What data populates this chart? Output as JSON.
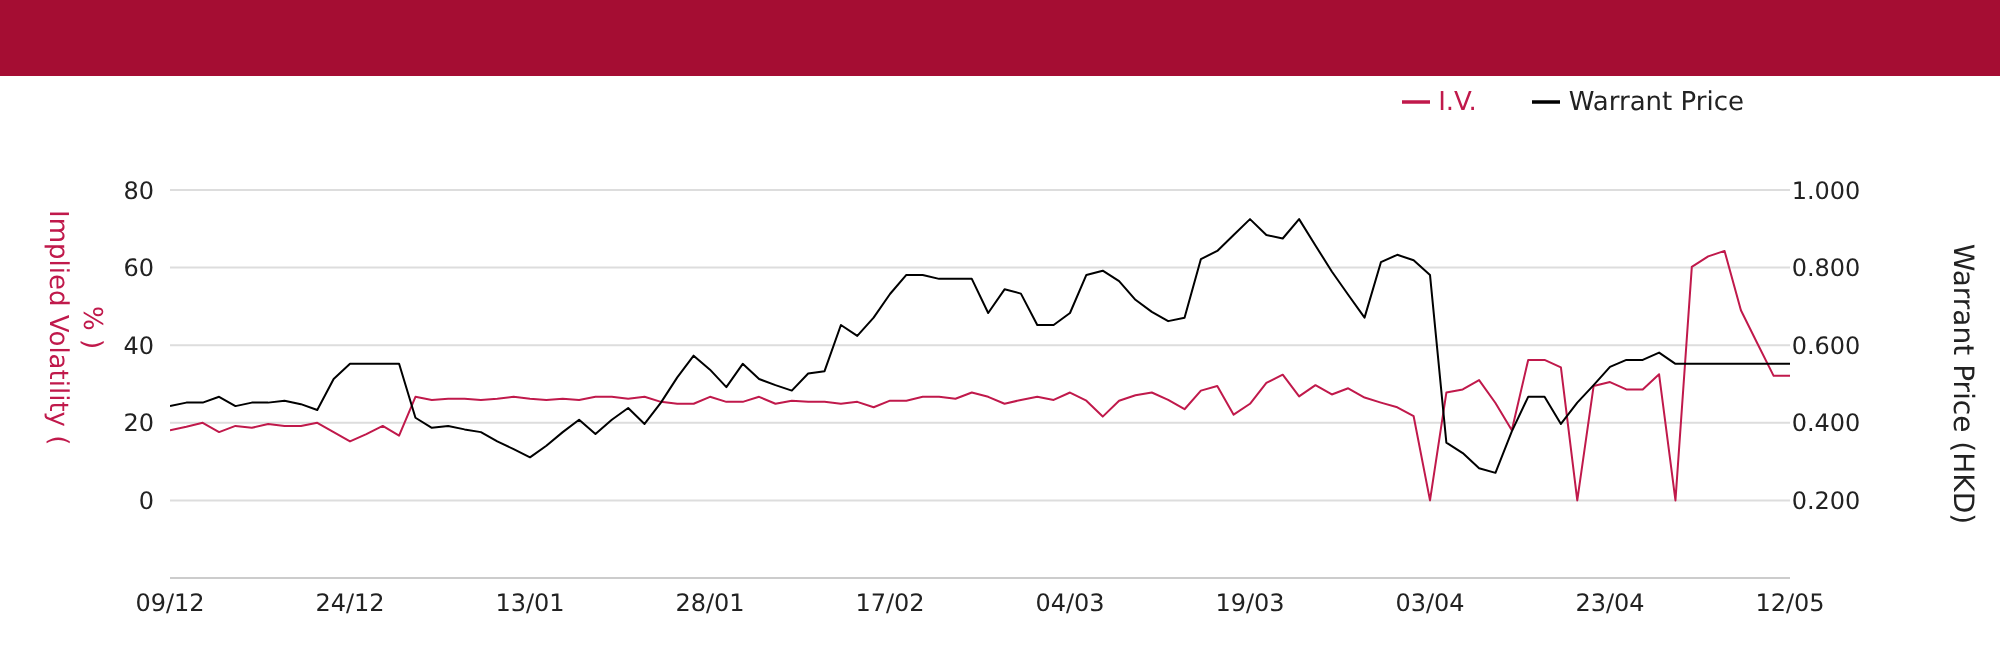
{
  "chart_data": {
    "type": "line",
    "categories": [
      "09/12",
      null,
      null,
      null,
      null,
      null,
      null,
      null,
      null,
      null,
      null,
      "24/12",
      null,
      null,
      null,
      null,
      null,
      null,
      null,
      null,
      null,
      null,
      "13/01",
      null,
      null,
      null,
      null,
      null,
      null,
      null,
      null,
      null,
      null,
      "28/01",
      null,
      null,
      null,
      null,
      null,
      null,
      null,
      null,
      null,
      null,
      "17/02",
      null,
      null,
      null,
      null,
      null,
      null,
      null,
      null,
      null,
      null,
      "04/03",
      null,
      null,
      null,
      null,
      null,
      null,
      null,
      null,
      null,
      null,
      "19/03",
      null,
      null,
      null,
      null,
      null,
      null,
      null,
      null,
      null,
      null,
      "03/04",
      null,
      null,
      null,
      null,
      null,
      null,
      null,
      null,
      null,
      null,
      "23/04",
      null,
      null,
      null,
      null,
      null,
      null,
      null,
      null,
      null,
      null,
      "12/05"
    ],
    "series": [
      {
        "name": "I.V.",
        "color": "#c0194b",
        "values": [
          18.1,
          19.0,
          20.0,
          17.6,
          19.2,
          18.7,
          19.7,
          19.2,
          19.2,
          20.0,
          17.6,
          15.2,
          17.1,
          19.2,
          16.7,
          26.7,
          25.9,
          26.2,
          26.2,
          25.9,
          26.2,
          26.7,
          26.2,
          25.9,
          26.2,
          25.9,
          26.7,
          26.7,
          26.2,
          26.7,
          25.4,
          24.9,
          24.9,
          26.7,
          25.4,
          25.4,
          26.7,
          24.9,
          25.7,
          25.4,
          25.4,
          24.9,
          25.4,
          24.0,
          25.7,
          25.7,
          26.7,
          26.7,
          26.2,
          27.8,
          26.7,
          24.9,
          25.9,
          26.7,
          25.9,
          27.8,
          25.7,
          21.6,
          25.7,
          27.1,
          27.8,
          25.9,
          23.5,
          28.3,
          29.5,
          22.1,
          24.9,
          30.3,
          32.4,
          26.8,
          29.7,
          27.3,
          28.9,
          26.5,
          25.2,
          24.0,
          21.7,
          0,
          27.8,
          28.6,
          31.0,
          25.1,
          18.1,
          36.2,
          36.2,
          34.3,
          0,
          29.5,
          30.5,
          28.6,
          28.6,
          32.5,
          0,
          60.2,
          62.9,
          64.3,
          49.0,
          40.5,
          32.1,
          32.1
        ]
      },
      {
        "name": "Warrant Price",
        "color": "#000000",
        "axis": "y2",
        "values": [
          0.443,
          0.452,
          0.452,
          0.467,
          0.443,
          0.452,
          0.452,
          0.457,
          0.448,
          0.433,
          0.513,
          0.552,
          0.552,
          0.552,
          0.552,
          0.413,
          0.387,
          0.392,
          0.383,
          0.376,
          0.352,
          0.332,
          0.311,
          0.341,
          0.376,
          0.408,
          0.371,
          0.408,
          0.438,
          0.397,
          0.452,
          0.517,
          0.573,
          0.537,
          0.492,
          0.552,
          0.513,
          0.497,
          0.483,
          0.527,
          0.533,
          0.652,
          0.624,
          0.671,
          0.732,
          0.781,
          0.781,
          0.771,
          0.771,
          0.771,
          0.683,
          0.744,
          0.733,
          0.652,
          0.652,
          0.683,
          0.781,
          0.792,
          0.765,
          0.717,
          0.686,
          0.662,
          0.671,
          0.822,
          0.843,
          0.884,
          0.925,
          0.884,
          0.875,
          0.925,
          0.857,
          0.79,
          0.73,
          0.671,
          0.814,
          0.833,
          0.819,
          0.781,
          0.349,
          0.322,
          0.283,
          0.271,
          0.378,
          0.467,
          0.467,
          0.397,
          0.452,
          0.497,
          0.544,
          0.562,
          0.562,
          0.581,
          0.552,
          0.552,
          0.552,
          0.552,
          0.552,
          0.552,
          0.552,
          0.552
        ]
      }
    ],
    "ylabel": "Implied Volatility ( % )",
    "y2label": "Warrant Price (HKD)",
    "ylim": [
      -20,
      80
    ],
    "yticks": [
      0,
      20,
      40,
      60,
      80
    ],
    "y2lim": [
      0,
      1
    ],
    "y2ticks": [
      {
        "value": 0.2,
        "label": "0.200"
      },
      {
        "value": 0.4,
        "label": "0.400"
      },
      {
        "value": 0.6,
        "label": "0.600"
      },
      {
        "value": 0.8,
        "label": "0.800"
      },
      {
        "value": 1,
        "label": "1.000"
      }
    ],
    "grid": "y",
    "legend": "top right"
  }
}
